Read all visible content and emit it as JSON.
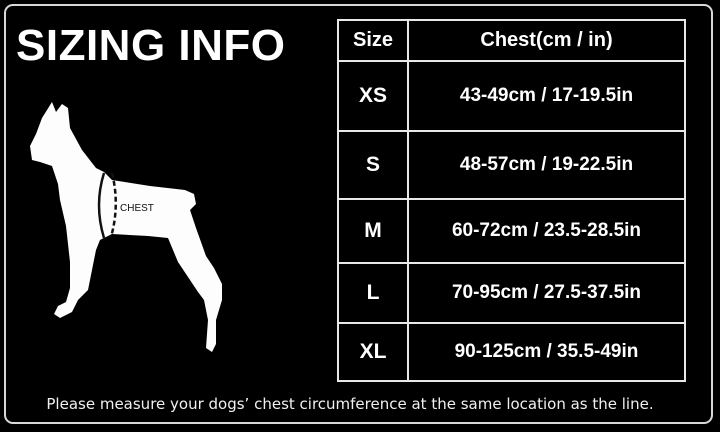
{
  "title": "SIZING INFO",
  "diagram_label": "CHEST",
  "table": {
    "headers": [
      "Size",
      "Chest(cm / in)"
    ],
    "rows": [
      {
        "size": "XS",
        "chest": "43-49cm / 17-19.5in"
      },
      {
        "size": "S",
        "chest": "48-57cm / 19-22.5in"
      },
      {
        "size": "M",
        "chest": "60-72cm / 23.5-28.5in"
      },
      {
        "size": "L",
        "chest": "70-95cm / 27.5-37.5in"
      },
      {
        "size": "XL",
        "chest": "90-125cm / 35.5-49in"
      }
    ]
  },
  "note": "Please measure your dogs’  chest circumference at the same location as the line."
}
